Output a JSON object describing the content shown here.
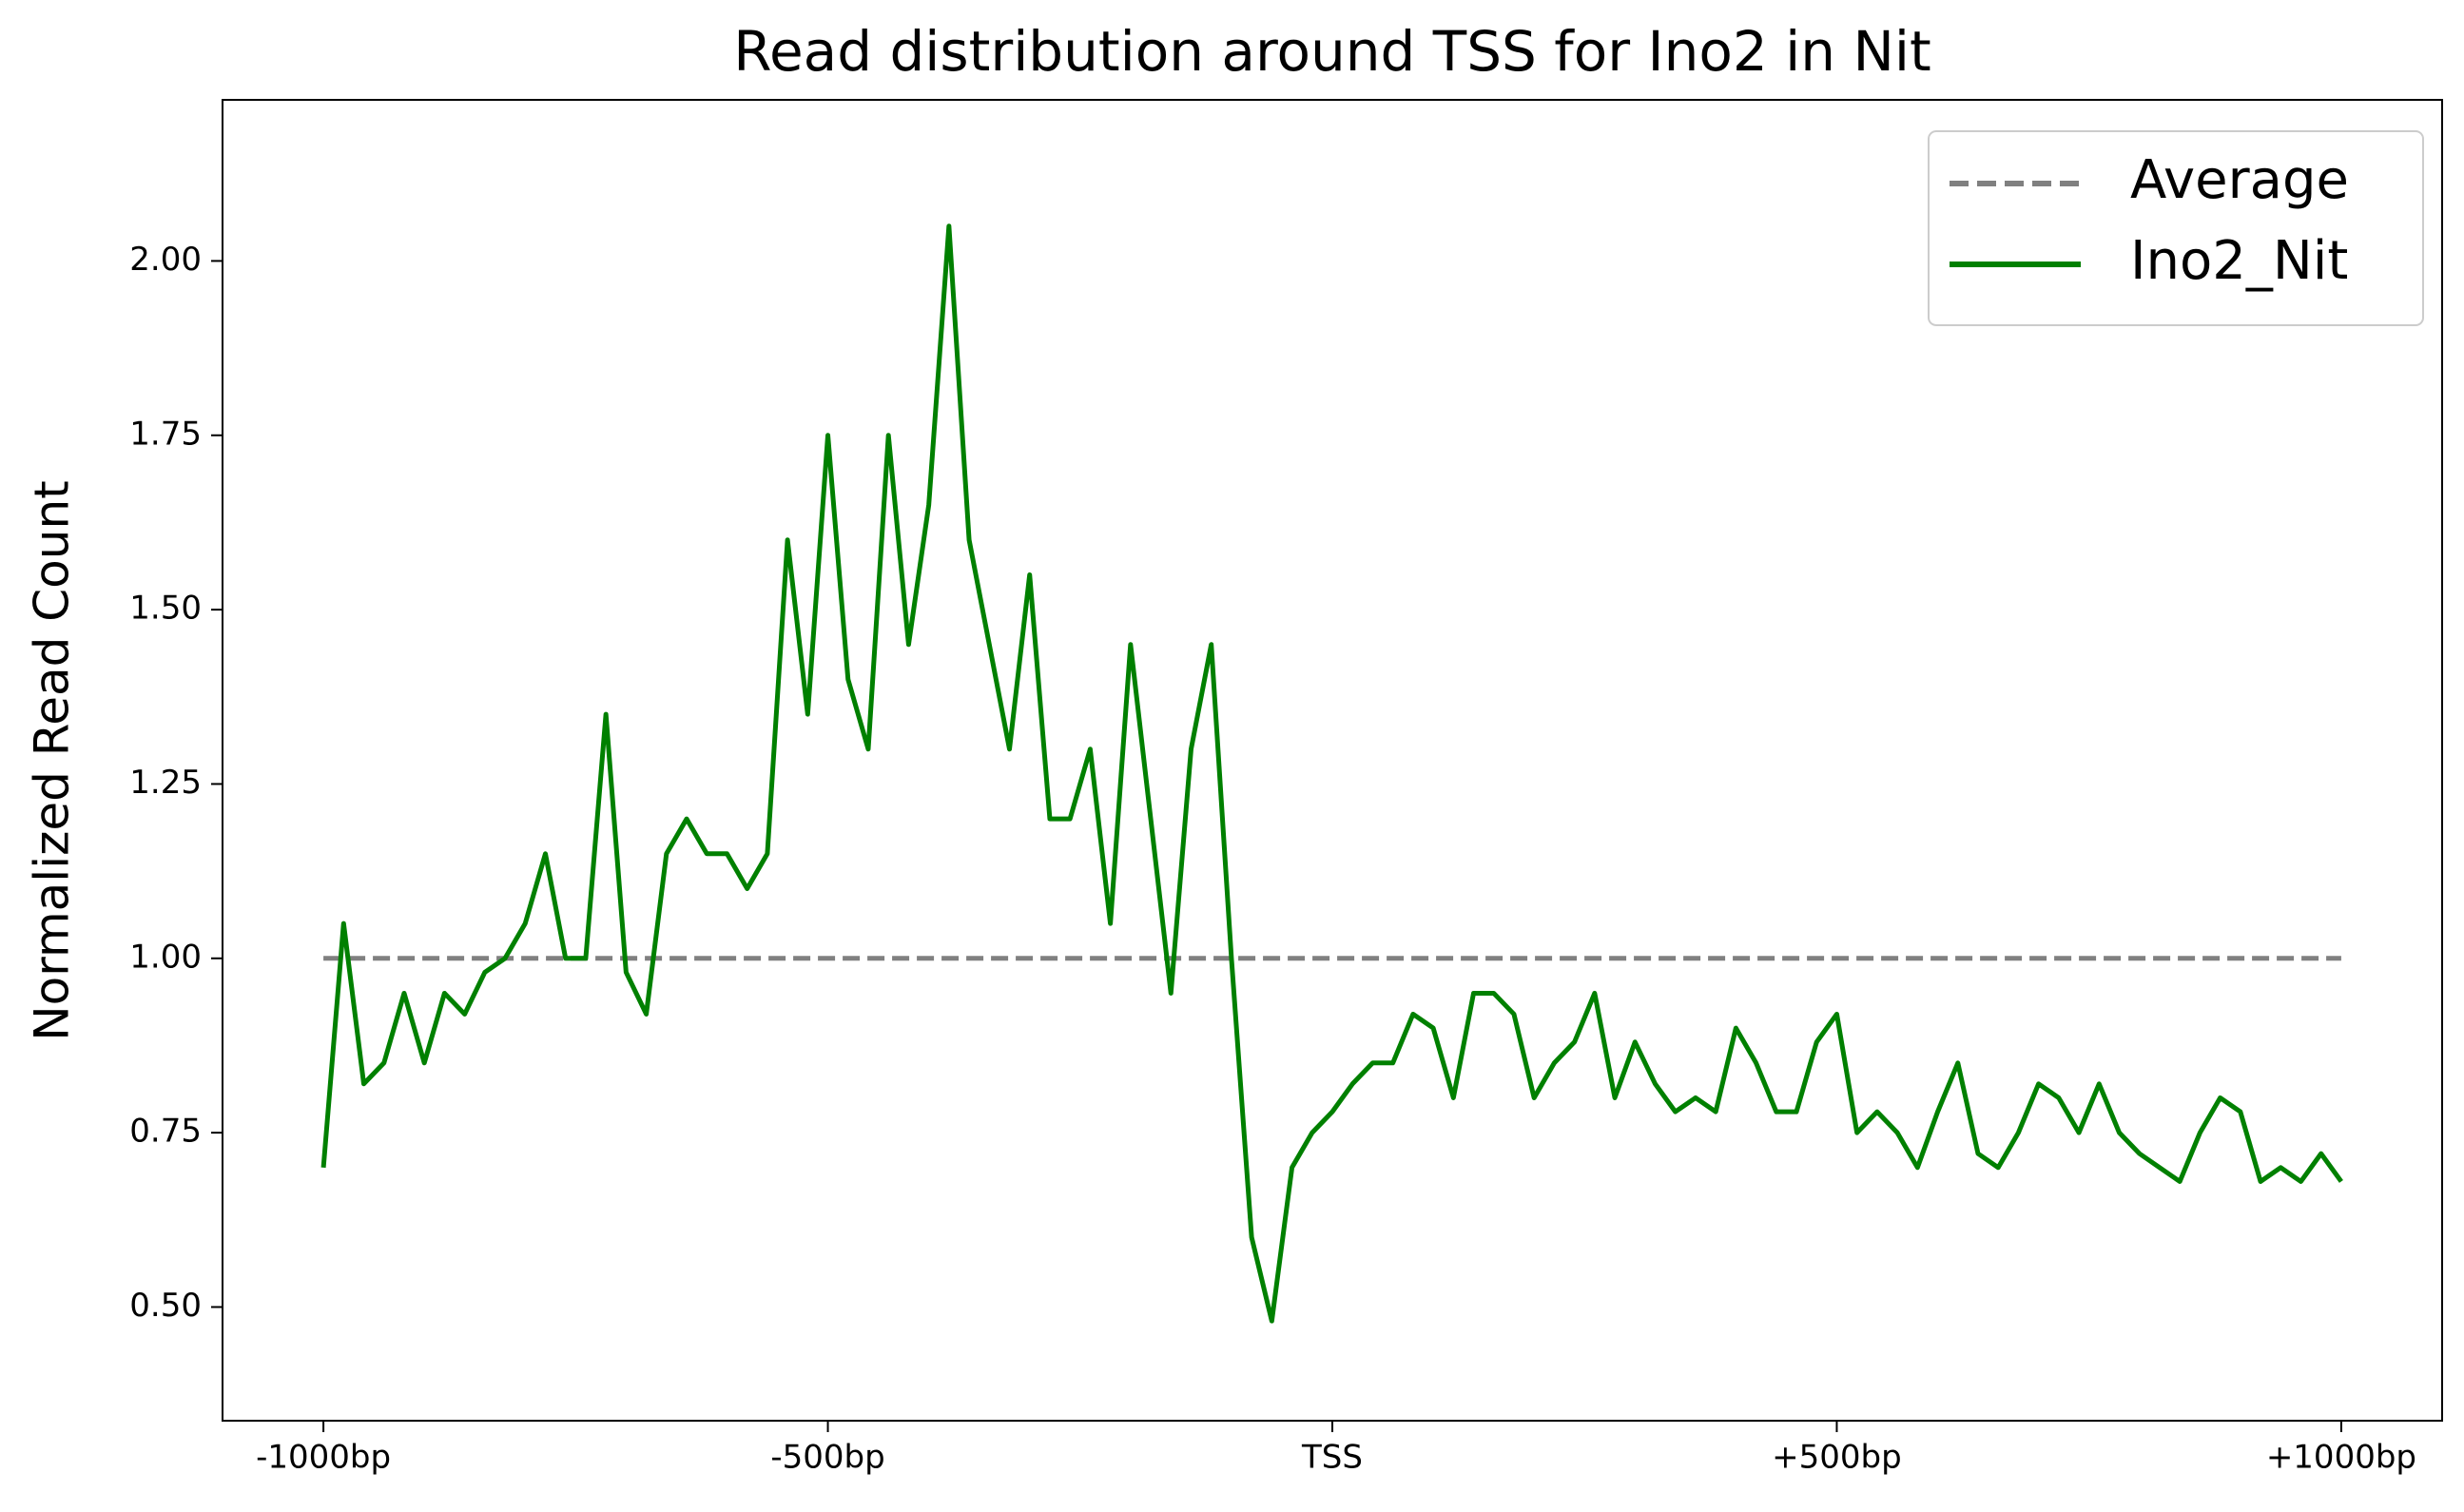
{
  "chart_data": {
    "type": "line",
    "title": "Read distribution around TSS for Ino2 in Nit",
    "y_label": "Normalized Read Count",
    "xlim": [
      -1100,
      1100
    ],
    "ylim": [
      0.337,
      2.231
    ],
    "xticks": [
      {
        "value": -1000,
        "label": "-1000bp"
      },
      {
        "value": -500,
        "label": "-500bp"
      },
      {
        "value": 0,
        "label": "TSS"
      },
      {
        "value": 500,
        "label": "+500bp"
      },
      {
        "value": 1000,
        "label": "+1000bp"
      }
    ],
    "yticks": [
      {
        "value": 0.5,
        "label": "0.50"
      },
      {
        "value": 0.75,
        "label": "0.75"
      },
      {
        "value": 1.0,
        "label": "1.00"
      },
      {
        "value": 1.25,
        "label": "1.25"
      },
      {
        "value": 1.5,
        "label": "1.50"
      },
      {
        "value": 1.75,
        "label": "1.75"
      },
      {
        "value": 2.0,
        "label": "2.00"
      }
    ],
    "grid": false,
    "legend": "upper right",
    "series": [
      {
        "name": "Average",
        "color": "#808080",
        "linestyle": "dashed",
        "x": [
          -1000,
          1000
        ],
        "values": [
          1.0,
          1.0
        ]
      },
      {
        "name": "Ino2_Nit",
        "color": "#008000",
        "linestyle": "solid",
        "x": [
          -1000,
          -980,
          -960,
          -940,
          -920,
          -900,
          -880,
          -860,
          -840,
          -820,
          -800,
          -780,
          -760,
          -740,
          -720,
          -700,
          -680,
          -660,
          -640,
          -620,
          -600,
          -580,
          -560,
          -540,
          -520,
          -500,
          -480,
          -460,
          -440,
          -420,
          -400,
          -380,
          -360,
          -340,
          -320,
          -300,
          -280,
          -260,
          -240,
          -220,
          -200,
          -180,
          -160,
          -140,
          -120,
          -100,
          -80,
          -60,
          -40,
          -20,
          0,
          20,
          40,
          60,
          80,
          100,
          120,
          140,
          160,
          180,
          200,
          220,
          240,
          260,
          280,
          300,
          320,
          340,
          360,
          380,
          400,
          420,
          440,
          460,
          480,
          500,
          520,
          540,
          560,
          580,
          600,
          620,
          640,
          660,
          680,
          700,
          720,
          740,
          760,
          780,
          800,
          820,
          840,
          860,
          880,
          900,
          920,
          940,
          960,
          980,
          1000
        ],
        "values": [
          0.7,
          1.05,
          0.82,
          0.85,
          0.95,
          0.85,
          0.95,
          0.92,
          0.98,
          1.0,
          1.05,
          1.15,
          1.0,
          1.0,
          1.35,
          0.98,
          0.92,
          1.15,
          1.2,
          1.15,
          1.15,
          1.1,
          1.15,
          1.6,
          1.35,
          1.75,
          1.4,
          1.3,
          1.75,
          1.45,
          1.65,
          2.05,
          1.6,
          1.45,
          1.3,
          1.55,
          1.2,
          1.2,
          1.3,
          1.05,
          1.45,
          1.2,
          0.95,
          1.3,
          1.45,
          1.0,
          0.6,
          0.48,
          0.7,
          0.75,
          0.78,
          0.82,
          0.85,
          0.85,
          0.92,
          0.9,
          0.8,
          0.95,
          0.95,
          0.92,
          0.8,
          0.85,
          0.88,
          0.95,
          0.8,
          0.88,
          0.82,
          0.78,
          0.8,
          0.78,
          0.9,
          0.85,
          0.78,
          0.78,
          0.88,
          0.92,
          0.75,
          0.78,
          0.75,
          0.7,
          0.78,
          0.85,
          0.72,
          0.7,
          0.75,
          0.82,
          0.8,
          0.75,
          0.82,
          0.75,
          0.72,
          0.7,
          0.68,
          0.75,
          0.8,
          0.78,
          0.68,
          0.7,
          0.68,
          0.72,
          0.68
        ]
      }
    ]
  }
}
